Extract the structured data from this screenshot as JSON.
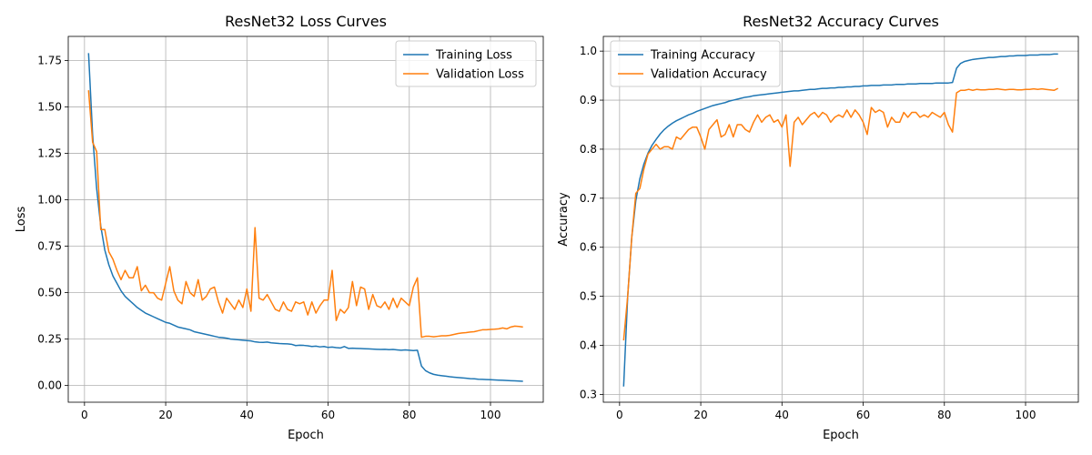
{
  "colors": {
    "training": "#1f77b4",
    "validation": "#ff7f0e",
    "grid": "#b0b0b0"
  },
  "chart_data": [
    {
      "type": "line",
      "title": "ResNet32 Loss Curves",
      "xlabel": "Epoch",
      "ylabel": "Loss",
      "xlim": [
        -4,
        113
      ],
      "ylim": [
        -0.09,
        1.88
      ],
      "xticks": [
        0,
        20,
        40,
        60,
        80,
        100
      ],
      "xtick_labels": [
        "0",
        "20",
        "40",
        "60",
        "80",
        "100"
      ],
      "yticks": [
        0.0,
        0.25,
        0.5,
        0.75,
        1.0,
        1.25,
        1.5,
        1.75
      ],
      "ytick_labels": [
        "0.00",
        "0.25",
        "0.50",
        "0.75",
        "1.00",
        "1.25",
        "1.50",
        "1.75"
      ],
      "grid": true,
      "legend_position": "top-right",
      "x": [
        1,
        2,
        3,
        4,
        5,
        6,
        7,
        8,
        9,
        10,
        11,
        12,
        13,
        14,
        15,
        16,
        17,
        18,
        19,
        20,
        21,
        22,
        23,
        24,
        25,
        26,
        27,
        28,
        29,
        30,
        31,
        32,
        33,
        34,
        35,
        36,
        37,
        38,
        39,
        40,
        41,
        42,
        43,
        44,
        45,
        46,
        47,
        48,
        49,
        50,
        51,
        52,
        53,
        54,
        55,
        56,
        57,
        58,
        59,
        60,
        61,
        62,
        63,
        64,
        65,
        66,
        67,
        68,
        69,
        70,
        71,
        72,
        73,
        74,
        75,
        76,
        77,
        78,
        79,
        80,
        81,
        82,
        83,
        84,
        85,
        86,
        87,
        88,
        89,
        90,
        91,
        92,
        93,
        94,
        95,
        96,
        97,
        98,
        99,
        100,
        101,
        102,
        103,
        104,
        105,
        106,
        107,
        108
      ],
      "series": [
        {
          "name": "Training Loss",
          "values": [
            1.79,
            1.35,
            1.06,
            0.86,
            0.73,
            0.65,
            0.59,
            0.55,
            0.51,
            0.48,
            0.46,
            0.44,
            0.42,
            0.405,
            0.39,
            0.38,
            0.37,
            0.36,
            0.35,
            0.34,
            0.335,
            0.325,
            0.315,
            0.31,
            0.305,
            0.3,
            0.29,
            0.285,
            0.28,
            0.275,
            0.27,
            0.265,
            0.26,
            0.258,
            0.255,
            0.25,
            0.248,
            0.246,
            0.244,
            0.242,
            0.24,
            0.235,
            0.233,
            0.232,
            0.234,
            0.23,
            0.228,
            0.226,
            0.225,
            0.224,
            0.222,
            0.215,
            0.217,
            0.216,
            0.214,
            0.21,
            0.212,
            0.208,
            0.21,
            0.205,
            0.207,
            0.204,
            0.202,
            0.21,
            0.2,
            0.201,
            0.2,
            0.199,
            0.198,
            0.197,
            0.196,
            0.195,
            0.194,
            0.195,
            0.193,
            0.194,
            0.192,
            0.19,
            0.192,
            0.19,
            0.188,
            0.19,
            0.105,
            0.08,
            0.068,
            0.06,
            0.056,
            0.053,
            0.05,
            0.047,
            0.045,
            0.043,
            0.041,
            0.039,
            0.037,
            0.036,
            0.034,
            0.033,
            0.032,
            0.031,
            0.03,
            0.029,
            0.028,
            0.027,
            0.026,
            0.025,
            0.024,
            0.023
          ]
        },
        {
          "name": "Validation Loss",
          "values": [
            1.59,
            1.31,
            1.26,
            0.84,
            0.84,
            0.72,
            0.68,
            0.62,
            0.57,
            0.62,
            0.58,
            0.58,
            0.64,
            0.51,
            0.54,
            0.5,
            0.5,
            0.47,
            0.46,
            0.55,
            0.64,
            0.51,
            0.46,
            0.44,
            0.56,
            0.5,
            0.48,
            0.57,
            0.46,
            0.48,
            0.52,
            0.53,
            0.45,
            0.39,
            0.47,
            0.44,
            0.41,
            0.46,
            0.42,
            0.52,
            0.4,
            0.85,
            0.47,
            0.46,
            0.49,
            0.45,
            0.41,
            0.4,
            0.45,
            0.41,
            0.4,
            0.45,
            0.44,
            0.45,
            0.38,
            0.45,
            0.39,
            0.43,
            0.46,
            0.46,
            0.62,
            0.35,
            0.41,
            0.39,
            0.42,
            0.56,
            0.43,
            0.53,
            0.52,
            0.41,
            0.49,
            0.43,
            0.42,
            0.45,
            0.41,
            0.47,
            0.42,
            0.47,
            0.45,
            0.43,
            0.53,
            0.58,
            0.26,
            0.265,
            0.265,
            0.262,
            0.265,
            0.268,
            0.268,
            0.27,
            0.275,
            0.28,
            0.283,
            0.285,
            0.288,
            0.29,
            0.295,
            0.3,
            0.3,
            0.302,
            0.303,
            0.305,
            0.31,
            0.305,
            0.315,
            0.32,
            0.318,
            0.315
          ]
        }
      ]
    },
    {
      "type": "line",
      "title": "ResNet32 Accuracy Curves",
      "xlabel": "Epoch",
      "ylabel": "Accuracy",
      "xlim": [
        -4,
        113
      ],
      "ylim": [
        0.284,
        1.03
      ],
      "xticks": [
        0,
        20,
        40,
        60,
        80,
        100
      ],
      "xtick_labels": [
        "0",
        "20",
        "40",
        "60",
        "80",
        "100"
      ],
      "yticks": [
        0.3,
        0.4,
        0.5,
        0.6,
        0.7,
        0.8,
        0.9,
        1.0
      ],
      "ytick_labels": [
        "0.3",
        "0.4",
        "0.5",
        "0.6",
        "0.7",
        "0.8",
        "0.9",
        "1.0"
      ],
      "grid": true,
      "legend_position": "top-left",
      "x": [
        1,
        2,
        3,
        4,
        5,
        6,
        7,
        8,
        9,
        10,
        11,
        12,
        13,
        14,
        15,
        16,
        17,
        18,
        19,
        20,
        21,
        22,
        23,
        24,
        25,
        26,
        27,
        28,
        29,
        30,
        31,
        32,
        33,
        34,
        35,
        36,
        37,
        38,
        39,
        40,
        41,
        42,
        43,
        44,
        45,
        46,
        47,
        48,
        49,
        50,
        51,
        52,
        53,
        54,
        55,
        56,
        57,
        58,
        59,
        60,
        61,
        62,
        63,
        64,
        65,
        66,
        67,
        68,
        69,
        70,
        71,
        72,
        73,
        74,
        75,
        76,
        77,
        78,
        79,
        80,
        81,
        82,
        83,
        84,
        85,
        86,
        87,
        88,
        89,
        90,
        91,
        92,
        93,
        94,
        95,
        96,
        97,
        98,
        99,
        100,
        101,
        102,
        103,
        104,
        105,
        106,
        107,
        108
      ],
      "series": [
        {
          "name": "Training Accuracy",
          "values": [
            0.316,
            0.5,
            0.62,
            0.695,
            0.74,
            0.77,
            0.792,
            0.808,
            0.82,
            0.831,
            0.84,
            0.847,
            0.853,
            0.858,
            0.862,
            0.866,
            0.87,
            0.873,
            0.877,
            0.88,
            0.883,
            0.886,
            0.889,
            0.891,
            0.893,
            0.895,
            0.898,
            0.9,
            0.902,
            0.904,
            0.906,
            0.907,
            0.909,
            0.91,
            0.911,
            0.912,
            0.913,
            0.914,
            0.915,
            0.916,
            0.917,
            0.918,
            0.919,
            0.919,
            0.92,
            0.921,
            0.922,
            0.922,
            0.923,
            0.924,
            0.924,
            0.925,
            0.925,
            0.926,
            0.926,
            0.927,
            0.927,
            0.928,
            0.928,
            0.929,
            0.929,
            0.93,
            0.93,
            0.93,
            0.931,
            0.931,
            0.931,
            0.932,
            0.932,
            0.932,
            0.933,
            0.933,
            0.933,
            0.934,
            0.934,
            0.934,
            0.934,
            0.935,
            0.935,
            0.935,
            0.935,
            0.936,
            0.965,
            0.975,
            0.979,
            0.981,
            0.983,
            0.984,
            0.985,
            0.986,
            0.987,
            0.987,
            0.988,
            0.989,
            0.989,
            0.99,
            0.99,
            0.991,
            0.991,
            0.991,
            0.992,
            0.992,
            0.992,
            0.993,
            0.993,
            0.993,
            0.994,
            0.994
          ]
        },
        {
          "name": "Validation Accuracy",
          "values": [
            0.41,
            0.5,
            0.62,
            0.71,
            0.72,
            0.76,
            0.79,
            0.8,
            0.81,
            0.8,
            0.805,
            0.805,
            0.8,
            0.825,
            0.82,
            0.83,
            0.84,
            0.845,
            0.845,
            0.825,
            0.8,
            0.84,
            0.85,
            0.86,
            0.825,
            0.83,
            0.85,
            0.825,
            0.85,
            0.85,
            0.84,
            0.835,
            0.855,
            0.87,
            0.855,
            0.865,
            0.87,
            0.855,
            0.86,
            0.845,
            0.87,
            0.765,
            0.855,
            0.865,
            0.85,
            0.86,
            0.87,
            0.875,
            0.865,
            0.875,
            0.87,
            0.855,
            0.865,
            0.87,
            0.865,
            0.88,
            0.865,
            0.88,
            0.87,
            0.855,
            0.83,
            0.885,
            0.875,
            0.88,
            0.875,
            0.845,
            0.865,
            0.855,
            0.855,
            0.875,
            0.865,
            0.875,
            0.875,
            0.865,
            0.87,
            0.865,
            0.875,
            0.87,
            0.865,
            0.875,
            0.85,
            0.835,
            0.915,
            0.92,
            0.92,
            0.922,
            0.92,
            0.922,
            0.921,
            0.921,
            0.922,
            0.922,
            0.923,
            0.922,
            0.921,
            0.922,
            0.922,
            0.921,
            0.921,
            0.922,
            0.922,
            0.923,
            0.922,
            0.923,
            0.922,
            0.921,
            0.92,
            0.924
          ]
        }
      ]
    }
  ]
}
